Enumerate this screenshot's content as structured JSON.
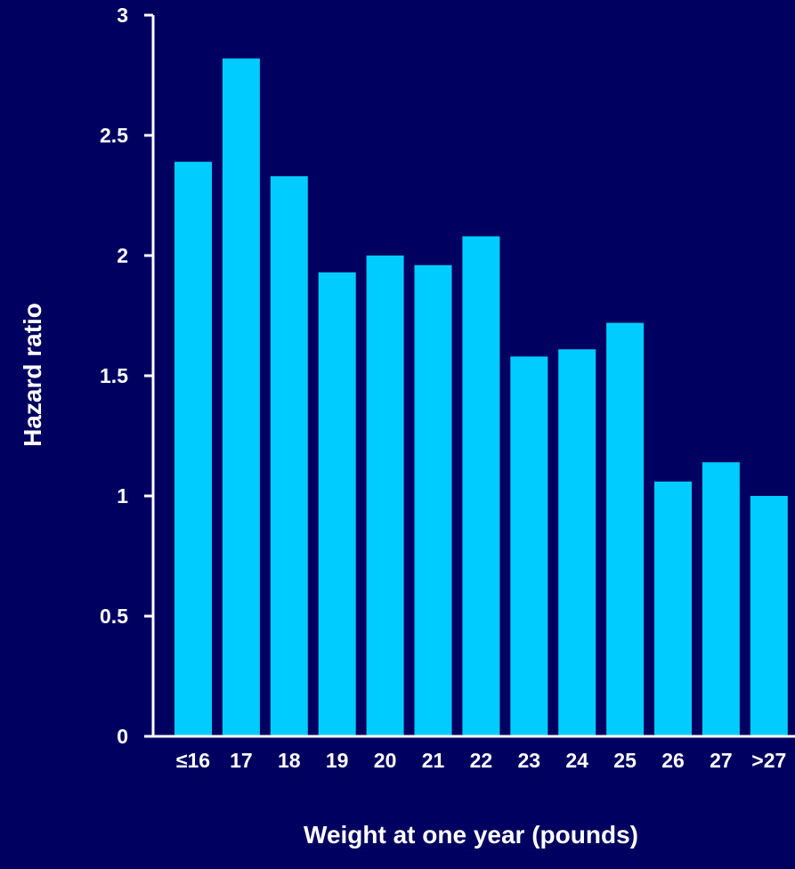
{
  "colors": {
    "background": "#000060",
    "bar": "#00ccff",
    "axis": "#ffffff",
    "text": "#ffffff"
  },
  "chart_data": {
    "type": "bar",
    "categories": [
      "≤16",
      "17",
      "18",
      "19",
      "20",
      "21",
      "22",
      "23",
      "24",
      "25",
      "26",
      "27",
      ">27"
    ],
    "values": [
      2.39,
      2.82,
      2.33,
      1.93,
      2.0,
      1.96,
      2.08,
      1.58,
      1.61,
      1.72,
      1.06,
      1.14,
      1.0
    ],
    "title": "",
    "xlabel": "Weight at one year (pounds)",
    "ylabel": "Hazard ratio",
    "ylim": [
      0,
      3
    ],
    "yticks": [
      0,
      0.5,
      1,
      1.5,
      2,
      2.5,
      3
    ],
    "ytick_labels": [
      "0",
      "0.5",
      "1",
      "1.5",
      "2",
      "2.5",
      "3"
    ],
    "grid": false,
    "legend": "none"
  }
}
